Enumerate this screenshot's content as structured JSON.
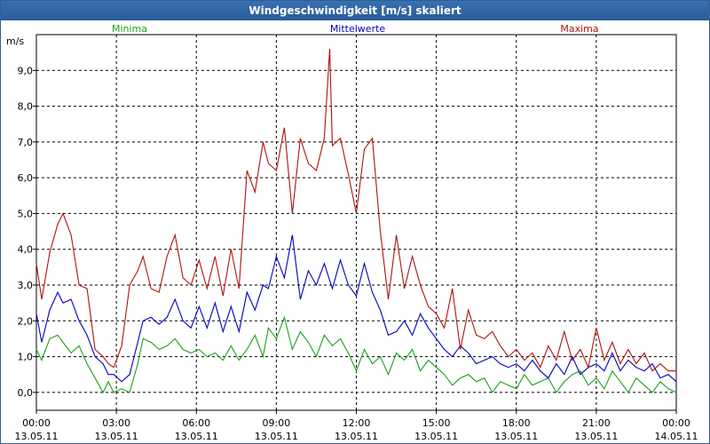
{
  "title": "Windgeschwindigkeit [m/s] skaliert",
  "chart_data": {
    "type": "line",
    "title": "Windgeschwindigkeit [m/s] skaliert",
    "ylabel": "m/s",
    "xlabel": "",
    "ylim": [
      -0.5,
      10.0
    ],
    "xlim": [
      0,
      24
    ],
    "grid": true,
    "legend_placement": "top",
    "yticks": [
      {
        "value": 0,
        "label": "0,0"
      },
      {
        "value": 1,
        "label": "1,0"
      },
      {
        "value": 2,
        "label": "2,0"
      },
      {
        "value": 3,
        "label": "3,0"
      },
      {
        "value": 4,
        "label": "4,0"
      },
      {
        "value": 5,
        "label": "5,0"
      },
      {
        "value": 6,
        "label": "6,0"
      },
      {
        "value": 7,
        "label": "7,0"
      },
      {
        "value": 8,
        "label": "8,0"
      },
      {
        "value": 9,
        "label": "9,0"
      }
    ],
    "xticks": [
      {
        "value": 0,
        "time": "00:00",
        "date": "13.05.11"
      },
      {
        "value": 3,
        "time": "03:00",
        "date": "13.05.11"
      },
      {
        "value": 6,
        "time": "06:00",
        "date": "13.05.11"
      },
      {
        "value": 9,
        "time": "09:00",
        "date": "13.05.11"
      },
      {
        "value": 12,
        "time": "12:00",
        "date": "13.05.11"
      },
      {
        "value": 15,
        "time": "15:00",
        "date": "13.05.11"
      },
      {
        "value": 18,
        "time": "18:00",
        "date": "13.05.11"
      },
      {
        "value": 21,
        "time": "21:00",
        "date": "13.05.11"
      },
      {
        "value": 24,
        "time": "00:00",
        "date": "14.05.11"
      }
    ],
    "series": [
      {
        "name": "Minima",
        "color": "#1aa01a",
        "x": [
          0,
          0.2,
          0.5,
          0.8,
          1.0,
          1.3,
          1.6,
          1.9,
          2.2,
          2.5,
          2.7,
          2.9,
          3.2,
          3.5,
          3.8,
          4.0,
          4.3,
          4.6,
          4.9,
          5.2,
          5.5,
          5.8,
          6.1,
          6.4,
          6.7,
          7.0,
          7.3,
          7.6,
          7.9,
          8.2,
          8.5,
          8.7,
          9.0,
          9.3,
          9.6,
          9.9,
          10.2,
          10.5,
          10.8,
          11.1,
          11.4,
          11.7,
          12.0,
          12.3,
          12.6,
          12.9,
          13.2,
          13.5,
          13.8,
          14.1,
          14.4,
          14.7,
          15.0,
          15.3,
          15.6,
          15.9,
          16.2,
          16.5,
          16.8,
          17.1,
          17.4,
          17.7,
          18.0,
          18.3,
          18.6,
          18.9,
          19.2,
          19.5,
          19.8,
          20.1,
          20.4,
          20.7,
          21.0,
          21.3,
          21.6,
          21.9,
          22.2,
          22.5,
          22.8,
          23.1,
          23.4,
          23.7,
          24.0
        ],
        "values": [
          1.2,
          0.9,
          1.5,
          1.6,
          1.4,
          1.1,
          1.3,
          0.8,
          0.4,
          0.0,
          0.3,
          0.0,
          0.1,
          0.0,
          0.8,
          1.5,
          1.4,
          1.2,
          1.3,
          1.5,
          1.2,
          1.1,
          1.2,
          1.0,
          1.1,
          0.9,
          1.3,
          0.9,
          1.2,
          1.6,
          1.0,
          1.8,
          1.5,
          2.1,
          1.2,
          1.7,
          1.4,
          1.0,
          1.6,
          1.3,
          1.5,
          1.1,
          0.6,
          1.2,
          0.8,
          1.0,
          0.5,
          1.1,
          0.9,
          1.2,
          0.6,
          0.9,
          0.7,
          0.5,
          0.2,
          0.4,
          0.5,
          0.3,
          0.4,
          0.0,
          0.3,
          0.2,
          0.1,
          0.5,
          0.2,
          0.3,
          0.4,
          0.0,
          0.3,
          0.5,
          0.6,
          0.2,
          0.4,
          0.1,
          0.6,
          0.3,
          0.0,
          0.4,
          0.2,
          0.0,
          0.3,
          0.1,
          0.0
        ]
      },
      {
        "name": "Mittelwerte",
        "color": "#0000c0",
        "x": [
          0,
          0.2,
          0.5,
          0.8,
          1.0,
          1.3,
          1.6,
          1.9,
          2.2,
          2.5,
          2.7,
          2.9,
          3.2,
          3.5,
          3.8,
          4.0,
          4.3,
          4.6,
          4.9,
          5.2,
          5.5,
          5.8,
          6.1,
          6.4,
          6.7,
          7.0,
          7.3,
          7.6,
          7.9,
          8.2,
          8.5,
          8.7,
          9.0,
          9.3,
          9.6,
          9.9,
          10.2,
          10.5,
          10.8,
          11.1,
          11.4,
          11.7,
          12.0,
          12.3,
          12.6,
          12.9,
          13.2,
          13.5,
          13.8,
          14.1,
          14.4,
          14.7,
          15.0,
          15.3,
          15.6,
          15.9,
          16.2,
          16.5,
          16.8,
          17.1,
          17.4,
          17.7,
          18.0,
          18.3,
          18.6,
          18.9,
          19.2,
          19.5,
          19.8,
          20.1,
          20.4,
          20.7,
          21.0,
          21.3,
          21.6,
          21.9,
          22.2,
          22.5,
          22.8,
          23.1,
          23.4,
          23.7,
          24.0
        ],
        "values": [
          2.2,
          1.4,
          2.3,
          2.8,
          2.5,
          2.6,
          2.0,
          1.6,
          1.0,
          0.8,
          0.5,
          0.5,
          0.3,
          0.5,
          1.4,
          2.0,
          2.1,
          1.9,
          2.1,
          2.6,
          2.0,
          1.8,
          2.4,
          1.8,
          2.5,
          1.7,
          2.4,
          1.7,
          2.8,
          2.3,
          3.0,
          2.9,
          3.8,
          3.2,
          4.4,
          2.6,
          3.4,
          3.0,
          3.6,
          2.9,
          3.7,
          3.0,
          2.7,
          3.6,
          2.8,
          2.3,
          1.6,
          1.7,
          2.0,
          1.6,
          2.2,
          1.8,
          1.5,
          1.2,
          1.0,
          1.3,
          1.1,
          0.8,
          0.9,
          1.0,
          0.8,
          0.7,
          0.8,
          0.6,
          0.9,
          0.6,
          0.4,
          0.8,
          0.5,
          1.0,
          0.5,
          0.7,
          0.8,
          0.6,
          1.1,
          0.6,
          0.9,
          0.7,
          0.6,
          0.8,
          0.4,
          0.5,
          0.3
        ]
      },
      {
        "name": "Maxima",
        "color": "#b01010",
        "x": [
          0,
          0.2,
          0.5,
          0.8,
          1.0,
          1.3,
          1.6,
          1.9,
          2.2,
          2.5,
          2.7,
          2.9,
          3.2,
          3.5,
          3.8,
          4.0,
          4.3,
          4.6,
          4.9,
          5.2,
          5.5,
          5.8,
          6.1,
          6.4,
          6.7,
          7.0,
          7.3,
          7.6,
          7.9,
          8.2,
          8.5,
          8.7,
          9.0,
          9.3,
          9.6,
          9.9,
          10.2,
          10.5,
          10.8,
          11.0,
          11.1,
          11.4,
          11.7,
          12.0,
          12.3,
          12.6,
          12.9,
          13.2,
          13.5,
          13.8,
          14.1,
          14.4,
          14.7,
          15.0,
          15.3,
          15.6,
          15.9,
          16.2,
          16.5,
          16.8,
          17.1,
          17.4,
          17.7,
          18.0,
          18.3,
          18.6,
          18.9,
          19.2,
          19.5,
          19.8,
          20.1,
          20.4,
          20.7,
          21.0,
          21.3,
          21.6,
          21.9,
          22.2,
          22.5,
          22.8,
          23.1,
          23.4,
          23.7,
          24.0
        ],
        "values": [
          3.6,
          2.6,
          3.9,
          4.7,
          5.0,
          4.4,
          3.0,
          2.9,
          1.2,
          1.0,
          0.8,
          0.7,
          1.3,
          3.0,
          3.4,
          3.8,
          2.9,
          2.8,
          3.8,
          4.4,
          3.2,
          3.0,
          3.7,
          2.9,
          3.8,
          2.7,
          4.0,
          2.9,
          6.2,
          5.6,
          7.0,
          6.4,
          6.2,
          7.4,
          5.0,
          7.1,
          6.4,
          6.2,
          7.1,
          9.6,
          6.9,
          7.1,
          6.1,
          5.0,
          6.8,
          7.1,
          4.5,
          2.6,
          4.4,
          2.9,
          3.8,
          3.0,
          2.4,
          2.2,
          1.8,
          2.9,
          1.2,
          2.3,
          1.6,
          1.5,
          1.7,
          1.3,
          1.0,
          1.2,
          0.9,
          1.1,
          0.7,
          1.3,
          0.9,
          1.7,
          0.9,
          1.2,
          0.7,
          1.8,
          0.9,
          1.4,
          0.8,
          1.2,
          0.8,
          1.1,
          0.6,
          0.8,
          0.6,
          0.6
        ]
      }
    ]
  }
}
